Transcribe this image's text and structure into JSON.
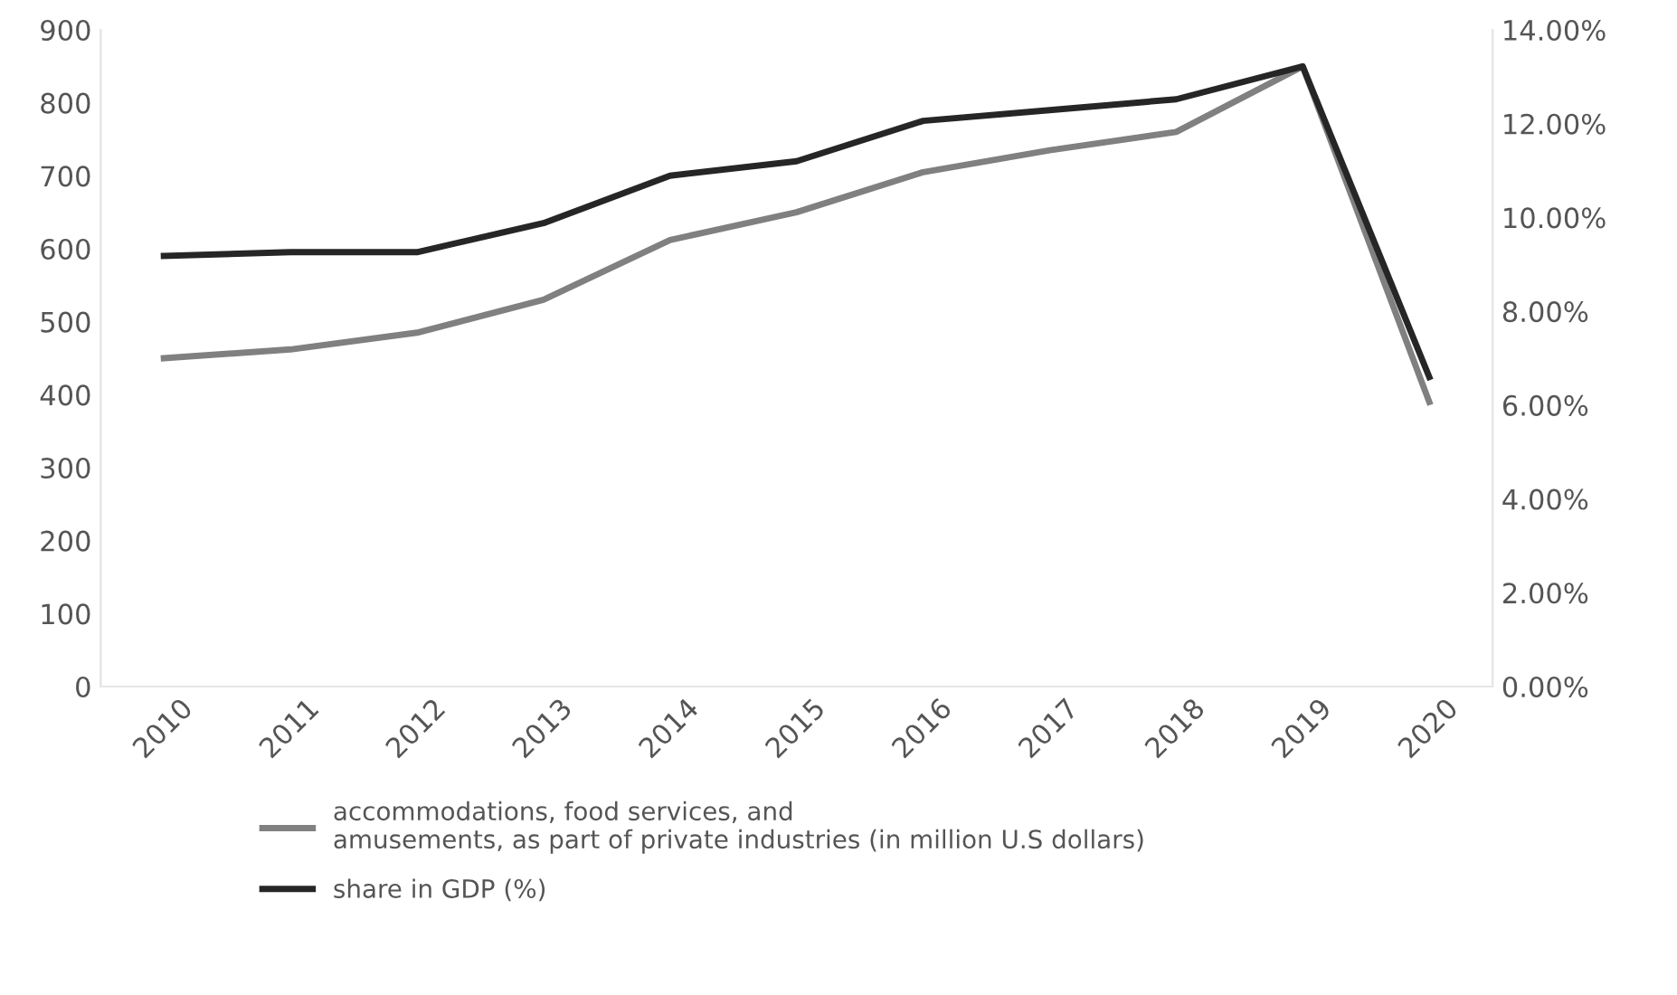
{
  "chart_data": {
    "type": "line",
    "categories": [
      "2010",
      "2011",
      "2012",
      "2013",
      "2014",
      "2015",
      "2016",
      "2017",
      "2018",
      "2019",
      "2020"
    ],
    "series": [
      {
        "name": "accommodations, food services, and\namusements, as part of private industries (in million U.S dollars)",
        "color": "#808080",
        "values": [
          450,
          462,
          485,
          530,
          612,
          650,
          705,
          735,
          760,
          850,
          390
        ]
      },
      {
        "name": "share in GDP (%)",
        "color": "#262626",
        "axis": "y2",
        "values": [
          9.18,
          9.26,
          9.26,
          9.88,
          10.89,
          11.2,
          12.06,
          12.29,
          12.52,
          13.22,
          6.6
        ]
      }
    ],
    "ylim": [
      0,
      900
    ],
    "yticks": [
      0,
      100,
      200,
      300,
      400,
      500,
      600,
      700,
      800,
      900
    ],
    "y2lim": [
      0,
      14
    ],
    "y2ticks": [
      {
        "value": 0,
        "label": "0.00%"
      },
      {
        "value": 2,
        "label": "2.00%"
      },
      {
        "value": 4,
        "label": "4.00%"
      },
      {
        "value": 6,
        "label": "6.00%"
      },
      {
        "value": 8,
        "label": "8.00%"
      },
      {
        "value": 10,
        "label": "10.00%"
      },
      {
        "value": 12,
        "label": "12.00%"
      },
      {
        "value": 14,
        "label": "14.00%"
      }
    ],
    "grid": false,
    "legend": "bottom",
    "marker": "none",
    "line_style": "solid"
  }
}
